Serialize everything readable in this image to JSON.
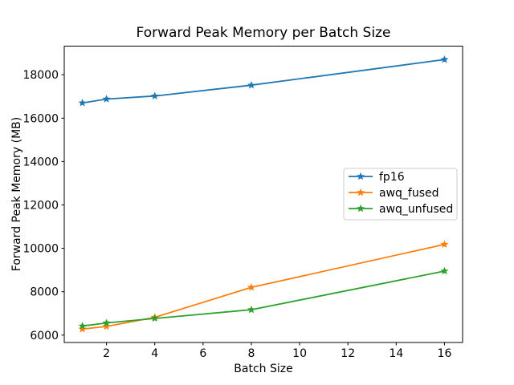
{
  "chart_data": {
    "type": "line",
    "title": "Forward Peak Memory per Batch Size",
    "xlabel": "Batch Size",
    "ylabel": "Forward Peak Memory (MB)",
    "x": [
      1,
      2,
      4,
      8,
      16
    ],
    "series": [
      {
        "name": "fp16",
        "color": "#1f77b4",
        "values": [
          16700,
          16880,
          17020,
          17520,
          18700
        ]
      },
      {
        "name": "awq_fused",
        "color": "#ff7f0e",
        "values": [
          6280,
          6400,
          6820,
          8200,
          10180
        ]
      },
      {
        "name": "awq_unfused",
        "color": "#2ca02c",
        "values": [
          6420,
          6560,
          6770,
          7170,
          8950
        ]
      }
    ],
    "marker": "star",
    "xlim": [
      0.25,
      16.75
    ],
    "ylim": [
      5660,
      19320
    ],
    "xticks": [
      2,
      4,
      6,
      8,
      10,
      12,
      14,
      16
    ],
    "yticks": [
      6000,
      8000,
      10000,
      12000,
      14000,
      16000,
      18000
    ],
    "grid": false,
    "legend_position": "center-right",
    "axis_color": "#000000",
    "background_color": "#ffffff",
    "legend_border_color": "#cccccc"
  }
}
